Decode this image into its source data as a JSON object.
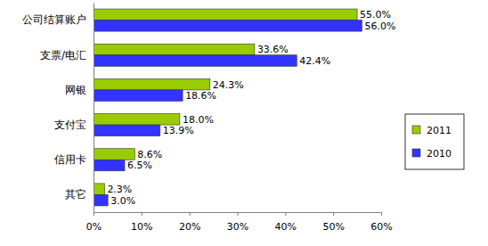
{
  "chart_data": {
    "type": "bar",
    "orientation": "horizontal",
    "data_labels": true,
    "grid": false,
    "legend": "right",
    "categories": [
      "公司结算账户",
      "支票/电汇",
      "网银",
      "支付宝",
      "信用卡",
      "其它"
    ],
    "series": [
      {
        "name": "2011",
        "color": "#99cc00",
        "values": [
          55.0,
          33.6,
          24.3,
          18.0,
          8.6,
          2.3
        ],
        "value_labels": [
          "55.0%",
          "33.6%",
          "24.3%",
          "18.0%",
          "8.6%",
          "2.3%"
        ]
      },
      {
        "name": "2010",
        "color": "#3333ff",
        "values": [
          56.0,
          42.4,
          18.6,
          13.9,
          6.5,
          3.0
        ],
        "value_labels": [
          "56.0%",
          "42.4%",
          "18.6%",
          "13.9%",
          "6.5%",
          "3.0%"
        ]
      }
    ],
    "xlim": [
      0,
      60
    ],
    "xticks": [
      {
        "value": 0,
        "label": "0%"
      },
      {
        "value": 10,
        "label": "10%"
      },
      {
        "value": 20,
        "label": "20%"
      },
      {
        "value": 30,
        "label": "30%"
      },
      {
        "value": 40,
        "label": "40%"
      },
      {
        "value": 50,
        "label": "50%"
      },
      {
        "value": 60,
        "label": "60%"
      }
    ]
  }
}
